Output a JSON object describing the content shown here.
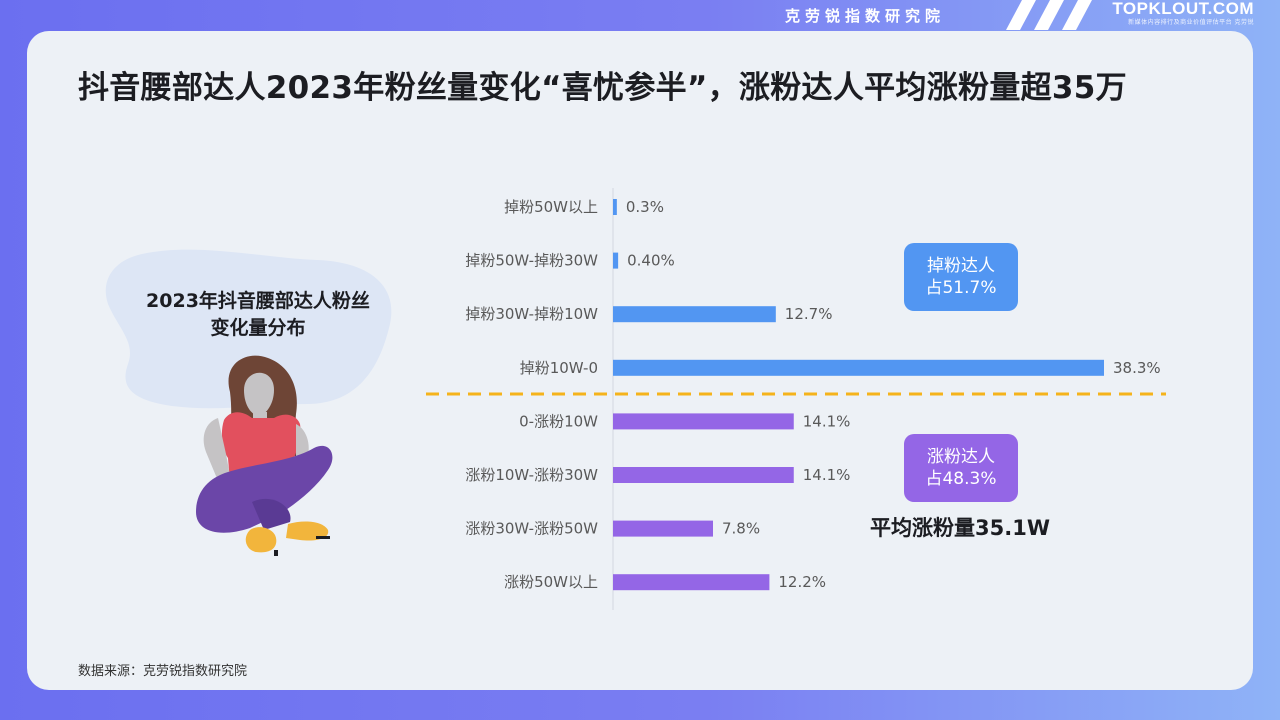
{
  "header": {
    "institute": "克劳锐指数研究院",
    "logo_text": "TOPKLOUT.COM",
    "logo_tagline": "新媒体内容排行及商业价值评估平台 克劳锐"
  },
  "title": "抖音腰部达人2023年粉丝量变化“喜忧参半”，涨粉达人平均涨粉量超35万",
  "illustration": {
    "title": "2023年抖音腰部达人粉丝变化量分布"
  },
  "badges": {
    "lose": {
      "line1": "掉粉达人",
      "line2": "占51.7%",
      "color": "#5296f2"
    },
    "gain": {
      "line1": "涨粉达人",
      "line2": "占48.3%",
      "color": "#9466e6"
    }
  },
  "average_text": "平均涨粉量35.1W",
  "source": "数据来源：克劳锐指数研究院",
  "colors": {
    "lose": "#5296f2",
    "gain": "#9466e6",
    "divider": "#f5b31b"
  },
  "chart_data": {
    "type": "bar",
    "orientation": "horizontal",
    "categories": [
      "掉粉50W以上",
      "掉粉50W-掉粉30W",
      "掉粉30W-掉粉10W",
      "掉粉10W-0",
      "0-涨粉10W",
      "涨粉10W-涨粉30W",
      "涨粉30W-涨粉50W",
      "涨粉50W以上"
    ],
    "values": [
      0.3,
      0.4,
      12.7,
      38.3,
      14.1,
      14.1,
      7.8,
      12.2
    ],
    "labels": [
      "0.3%",
      "0.40%",
      "12.7%",
      "38.3%",
      "14.1%",
      "14.1%",
      "7.8%",
      "12.2%"
    ],
    "groups": [
      "lose",
      "lose",
      "lose",
      "lose",
      "gain",
      "gain",
      "gain",
      "gain"
    ],
    "unit": "%",
    "xlim": [
      0,
      38.3
    ]
  }
}
